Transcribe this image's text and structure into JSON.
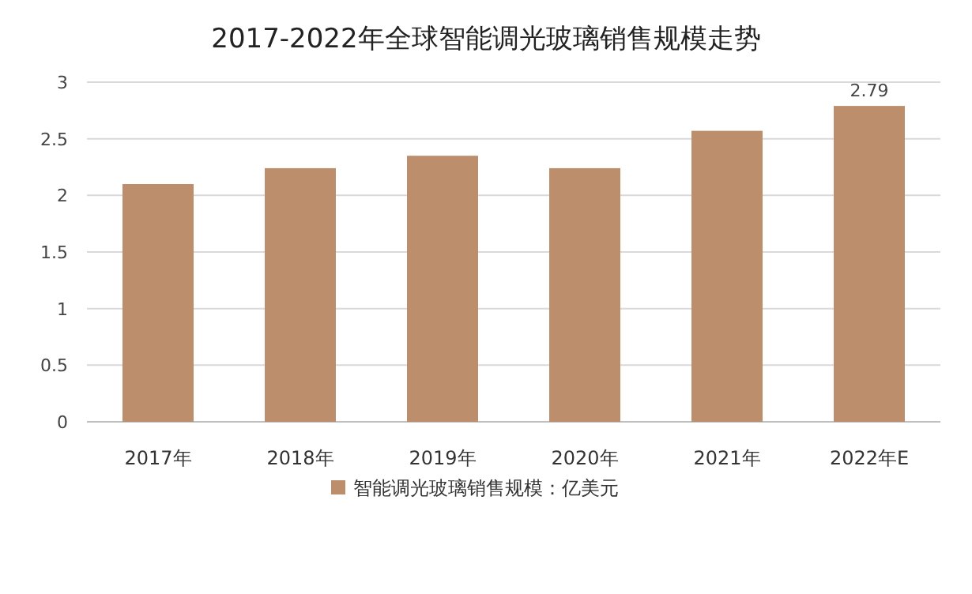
{
  "chart_data": {
    "type": "bar",
    "title": "2017-2022年全球智能调光玻璃销售规模走势",
    "categories": [
      "2017年",
      "2018年",
      "2019年",
      "2020年",
      "2021年",
      "2022年E"
    ],
    "series": [
      {
        "name": "智能调光玻璃销售规模：亿美元",
        "color": "#bc8e6b",
        "values": [
          2.1,
          2.24,
          2.35,
          2.24,
          2.57,
          2.79
        ],
        "value_labels": [
          null,
          null,
          null,
          null,
          null,
          "2.79"
        ]
      }
    ],
    "ylim": [
      0,
      3
    ],
    "yticks": [
      0,
      0.5,
      1,
      1.5,
      2,
      2.5,
      3
    ],
    "grid": "y",
    "legend": "bottom"
  }
}
